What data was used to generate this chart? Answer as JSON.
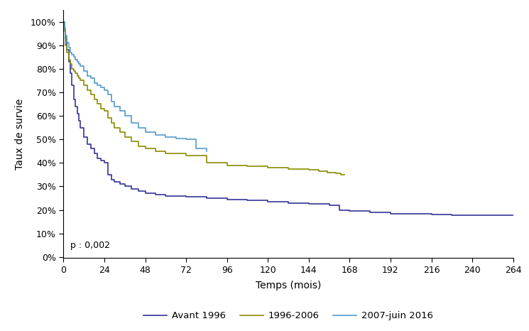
{
  "title": "",
  "xlabel": "Temps (mois)",
  "ylabel": "Taux de survie",
  "pvalue": "p : 0,002",
  "xlim": [
    0,
    264
  ],
  "ylim": [
    -0.005,
    1.05
  ],
  "xticks": [
    0,
    24,
    48,
    72,
    96,
    120,
    144,
    168,
    192,
    216,
    240,
    264
  ],
  "yticks": [
    0,
    0.1,
    0.2,
    0.3,
    0.4,
    0.5,
    0.6,
    0.7,
    0.8,
    0.9,
    1.0
  ],
  "colors": {
    "avant1996": "#333399",
    "period1996_2006": "#8B8B00",
    "period2007_2016": "#5599CC"
  },
  "legend_labels": [
    "Avant 1996",
    "1996-2006",
    "2007-juin 2016"
  ],
  "avant1996": {
    "x": [
      0,
      0.5,
      1,
      2,
      3,
      4,
      5,
      6,
      7,
      8,
      9,
      10,
      12,
      14,
      16,
      18,
      20,
      22,
      24,
      26,
      28,
      30,
      33,
      36,
      40,
      44,
      48,
      54,
      60,
      72,
      84,
      96,
      108,
      120,
      132,
      144,
      156,
      162,
      168,
      180,
      192,
      204,
      216,
      228,
      240,
      252,
      264
    ],
    "y": [
      1.0,
      0.97,
      0.93,
      0.88,
      0.83,
      0.78,
      0.73,
      0.67,
      0.64,
      0.61,
      0.58,
      0.55,
      0.51,
      0.48,
      0.46,
      0.44,
      0.42,
      0.41,
      0.4,
      0.35,
      0.33,
      0.32,
      0.31,
      0.3,
      0.29,
      0.28,
      0.27,
      0.265,
      0.26,
      0.255,
      0.25,
      0.245,
      0.24,
      0.235,
      0.23,
      0.225,
      0.22,
      0.2,
      0.195,
      0.19,
      0.185,
      0.183,
      0.181,
      0.179,
      0.178,
      0.178,
      0.177
    ]
  },
  "period1996_2006": {
    "x": [
      0,
      0.5,
      1,
      2,
      3,
      4,
      5,
      6,
      7,
      8,
      9,
      10,
      12,
      14,
      16,
      18,
      20,
      22,
      24,
      26,
      28,
      30,
      33,
      36,
      40,
      44,
      48,
      54,
      60,
      66,
      72,
      84,
      96,
      108,
      120,
      132,
      144,
      150,
      155,
      160,
      163,
      165
    ],
    "y": [
      1.0,
      0.96,
      0.9,
      0.87,
      0.84,
      0.82,
      0.8,
      0.79,
      0.78,
      0.77,
      0.76,
      0.75,
      0.73,
      0.71,
      0.69,
      0.67,
      0.65,
      0.63,
      0.62,
      0.59,
      0.57,
      0.55,
      0.53,
      0.51,
      0.49,
      0.47,
      0.46,
      0.45,
      0.44,
      0.44,
      0.43,
      0.4,
      0.39,
      0.385,
      0.38,
      0.375,
      0.37,
      0.365,
      0.36,
      0.355,
      0.35,
      0.35
    ]
  },
  "period2007_2016": {
    "x": [
      0,
      0.5,
      1,
      2,
      3,
      4,
      5,
      6,
      7,
      8,
      9,
      10,
      12,
      14,
      16,
      18,
      20,
      22,
      24,
      26,
      28,
      30,
      33,
      36,
      40,
      44,
      48,
      54,
      60,
      66,
      72,
      78,
      84
    ],
    "y": [
      1.0,
      0.97,
      0.94,
      0.91,
      0.89,
      0.87,
      0.86,
      0.85,
      0.84,
      0.83,
      0.82,
      0.81,
      0.79,
      0.77,
      0.76,
      0.74,
      0.73,
      0.72,
      0.71,
      0.69,
      0.66,
      0.64,
      0.62,
      0.6,
      0.57,
      0.55,
      0.53,
      0.52,
      0.51,
      0.505,
      0.5,
      0.46,
      0.45
    ]
  }
}
